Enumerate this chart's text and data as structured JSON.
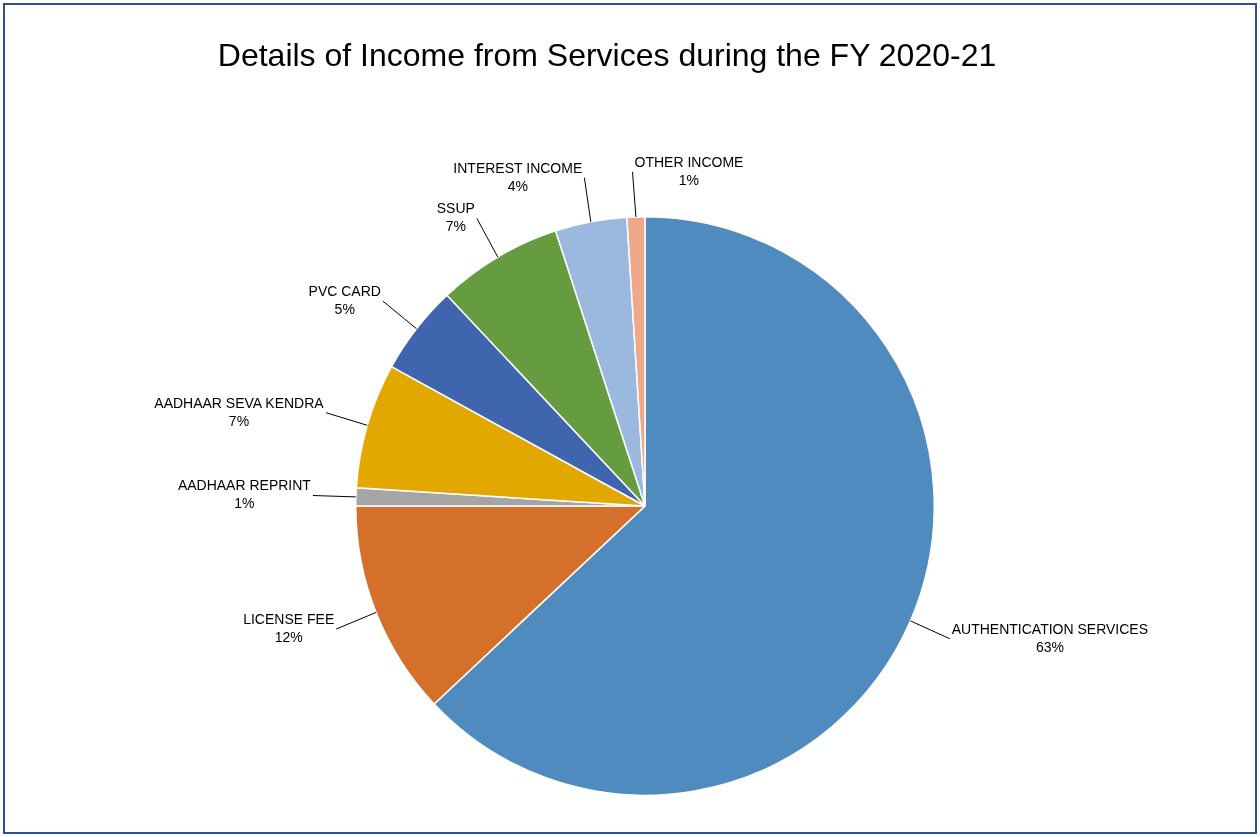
{
  "chart_data": {
    "type": "pie",
    "title": "Details of Income from Services during the FY 2020-21",
    "categories": [
      "AUTHENTICATION SERVICES",
      "LICENSE FEE",
      "AADHAAR REPRINT",
      "AADHAAR SEVA KENDRA",
      "PVC CARD",
      "SSUP",
      "INTEREST INCOME",
      "OTHER INCOME"
    ],
    "values": [
      63,
      12,
      1,
      7,
      5,
      7,
      4,
      1
    ],
    "colors": [
      "#4f8bbf",
      "#d4702a",
      "#a5a5a5",
      "#e3a800",
      "#3f65ae",
      "#659c3f",
      "#9bb8df",
      "#f0a88a"
    ],
    "value_labels": [
      "63%",
      "12%",
      "1%",
      "7%",
      "5%",
      "7%",
      "4%",
      "1%"
    ],
    "legend": false
  }
}
